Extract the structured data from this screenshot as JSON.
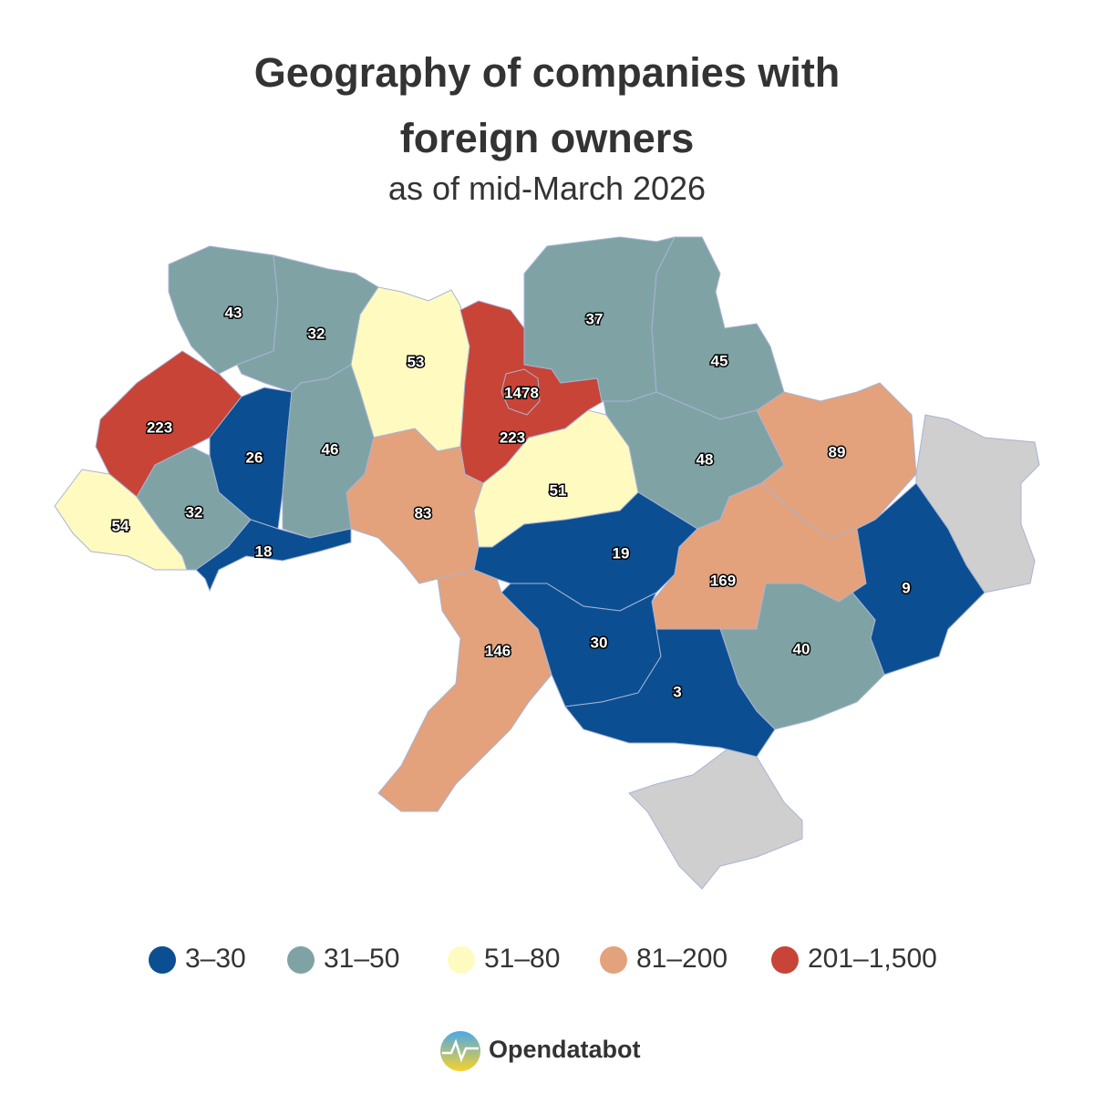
{
  "map": {
    "title": "Geography of companies with foreign owners",
    "subtitle": "as of mid-March 2026",
    "regions": [
      {
        "value": 43,
        "color": "#7fa3a5"
      },
      {
        "value": 32,
        "color": "#7fa3a5"
      },
      {
        "value": 53,
        "color": "#fffac0"
      },
      {
        "value": 223,
        "color": "#c84437"
      },
      {
        "value": 1478,
        "color": "#c84437"
      },
      {
        "value": 37,
        "color": "#7fa3a5"
      },
      {
        "value": 45,
        "color": "#7fa3a5"
      },
      {
        "value": 223,
        "color": "#c84437"
      },
      {
        "value": 26,
        "color": "#0b4f92"
      },
      {
        "value": 46,
        "color": "#7fa3a5"
      },
      {
        "value": 54,
        "color": "#fffac0"
      },
      {
        "value": 32,
        "color": "#7fa3a5"
      },
      {
        "value": 18,
        "color": "#0b4f92"
      },
      {
        "value": 83,
        "color": "#e3a27c"
      },
      {
        "value": 51,
        "color": "#fffac0"
      },
      {
        "value": 48,
        "color": "#7fa3a5"
      },
      {
        "value": 89,
        "color": "#e3a27c"
      },
      {
        "value": 19,
        "color": "#0b4f92"
      },
      {
        "value": 169,
        "color": "#e3a27c"
      },
      {
        "value": 9,
        "color": "#0b4f92"
      },
      {
        "value": 40,
        "color": "#7fa3a5"
      },
      {
        "value": 30,
        "color": "#0b4f92"
      },
      {
        "value": 3,
        "color": "#0b4f92"
      },
      {
        "value": 146,
        "color": "#e3a27c"
      }
    ],
    "legend": [
      {
        "label": "3–30",
        "color": "#0b4f92"
      },
      {
        "label": "31–50",
        "color": "#7fa3a5"
      },
      {
        "label": "51–80",
        "color": "#fffac0"
      },
      {
        "label": "81–200",
        "color": "#e3a27c"
      },
      {
        "label": "201–1,500",
        "color": "#c84437"
      }
    ],
    "brand": "Opendatabot"
  }
}
